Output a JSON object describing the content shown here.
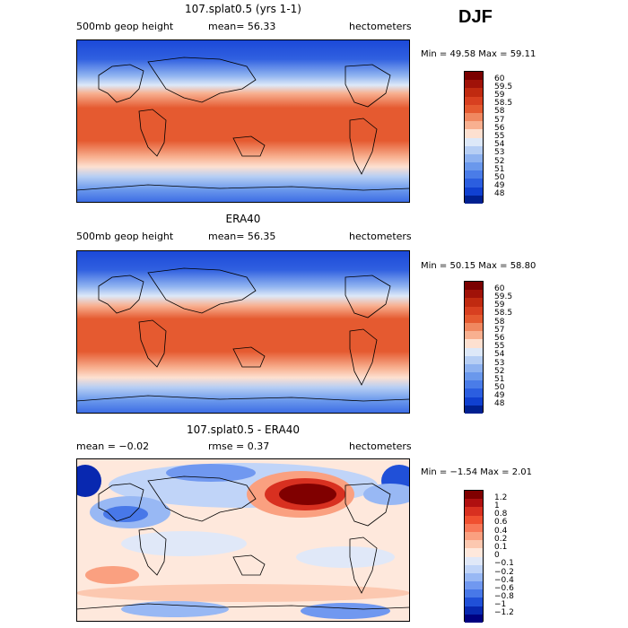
{
  "season": "DJF",
  "units": "hectometers",
  "panels": [
    {
      "id": "model",
      "title": "107.splat0.5 (yrs 1-1)",
      "left_label": "500mb geop height",
      "center_label": "mean=  56.33",
      "right_label": "hectometers",
      "stats": "Min =   49.58 Max =   59.11",
      "levels": [
        "60",
        "59.5",
        "59",
        "58.5",
        "58",
        "57",
        "56",
        "55",
        "54",
        "53",
        "52",
        "51",
        "50",
        "49",
        "48"
      ]
    },
    {
      "id": "obs",
      "title": "ERA40",
      "left_label": "500mb geop height",
      "center_label": "mean=  56.35",
      "right_label": "hectometers",
      "stats": "Min =   50.15 Max =   58.80",
      "levels": [
        "60",
        "59.5",
        "59",
        "58.5",
        "58",
        "57",
        "56",
        "55",
        "54",
        "53",
        "52",
        "51",
        "50",
        "49",
        "48"
      ]
    },
    {
      "id": "diff",
      "title": "107.splat0.5 - ERA40",
      "left_label": "mean =   −0.02",
      "center_label": "rmse =    0.37",
      "right_label": "hectometers",
      "stats": "Min =  −1.54 Max =    2.01",
      "levels": [
        "1.2",
        "1",
        "0.8",
        "0.6",
        "0.4",
        "0.2",
        "0.1",
        "0",
        "−0.1",
        "−0.2",
        "−0.4",
        "−0.6",
        "−0.8",
        "−1",
        "−1.2"
      ]
    }
  ],
  "colors": {
    "field_scale": [
      "#7a0000",
      "#a01208",
      "#c02a10",
      "#d84020",
      "#e55a30",
      "#f08860",
      "#f8b090",
      "#fde0d0",
      "#dde8f8",
      "#b6cef4",
      "#8eb2f0",
      "#6a98ec",
      "#4a7ce8",
      "#2b5ee0",
      "#1040d0",
      "#002090"
    ],
    "diff_scale": [
      "#800000",
      "#b01010",
      "#d83020",
      "#f05030",
      "#f87858",
      "#faa080",
      "#fcc8b0",
      "#fee8dc",
      "#e0e8f8",
      "#c0d4f8",
      "#98b8f4",
      "#7098f0",
      "#4878e8",
      "#2050d8",
      "#0828b0",
      "#000080"
    ]
  }
}
